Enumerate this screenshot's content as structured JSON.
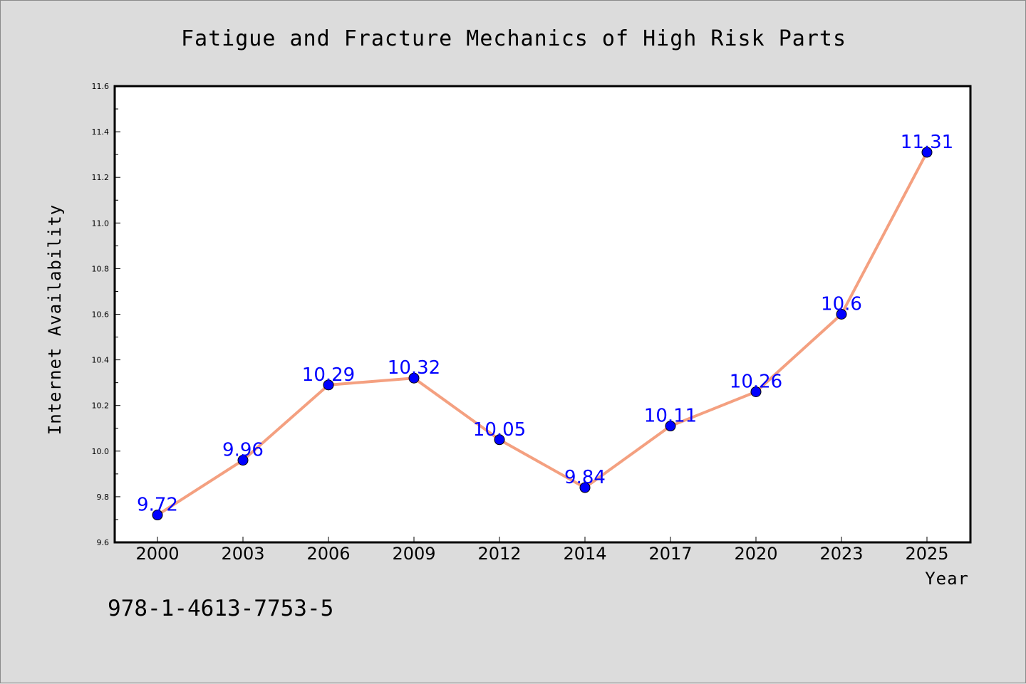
{
  "chart_data": {
    "type": "line",
    "title": "Fatigue and Fracture Mechanics of High Risk Parts",
    "xlabel": "Year",
    "ylabel": "Internet Availability",
    "categories": [
      "2000",
      "2003",
      "2006",
      "2009",
      "2012",
      "2014",
      "2017",
      "2020",
      "2023",
      "2025"
    ],
    "series": [
      {
        "values": [
          9.72,
          9.96,
          10.29,
          10.32,
          10.05,
          9.84,
          10.11,
          10.26,
          10.6,
          11.31
        ],
        "labels": [
          "9.72",
          "9.96",
          "10.29",
          "10.32",
          "10.05",
          "9.84",
          "10.11",
          "10.26",
          "10.6",
          "11.31"
        ]
      }
    ],
    "ylim": [
      9.6,
      11.6
    ],
    "yticks": [
      "9.6",
      "9.8",
      "10.0",
      "10.2",
      "10.4",
      "10.6",
      "10.8",
      "11.0",
      "11.2",
      "11.4",
      "11.6"
    ],
    "grid": false,
    "line_color": "#f4a080",
    "marker_color": "#0000ff",
    "label_color": "#0000ff"
  },
  "annotation": "978-1-4613-7753-5"
}
